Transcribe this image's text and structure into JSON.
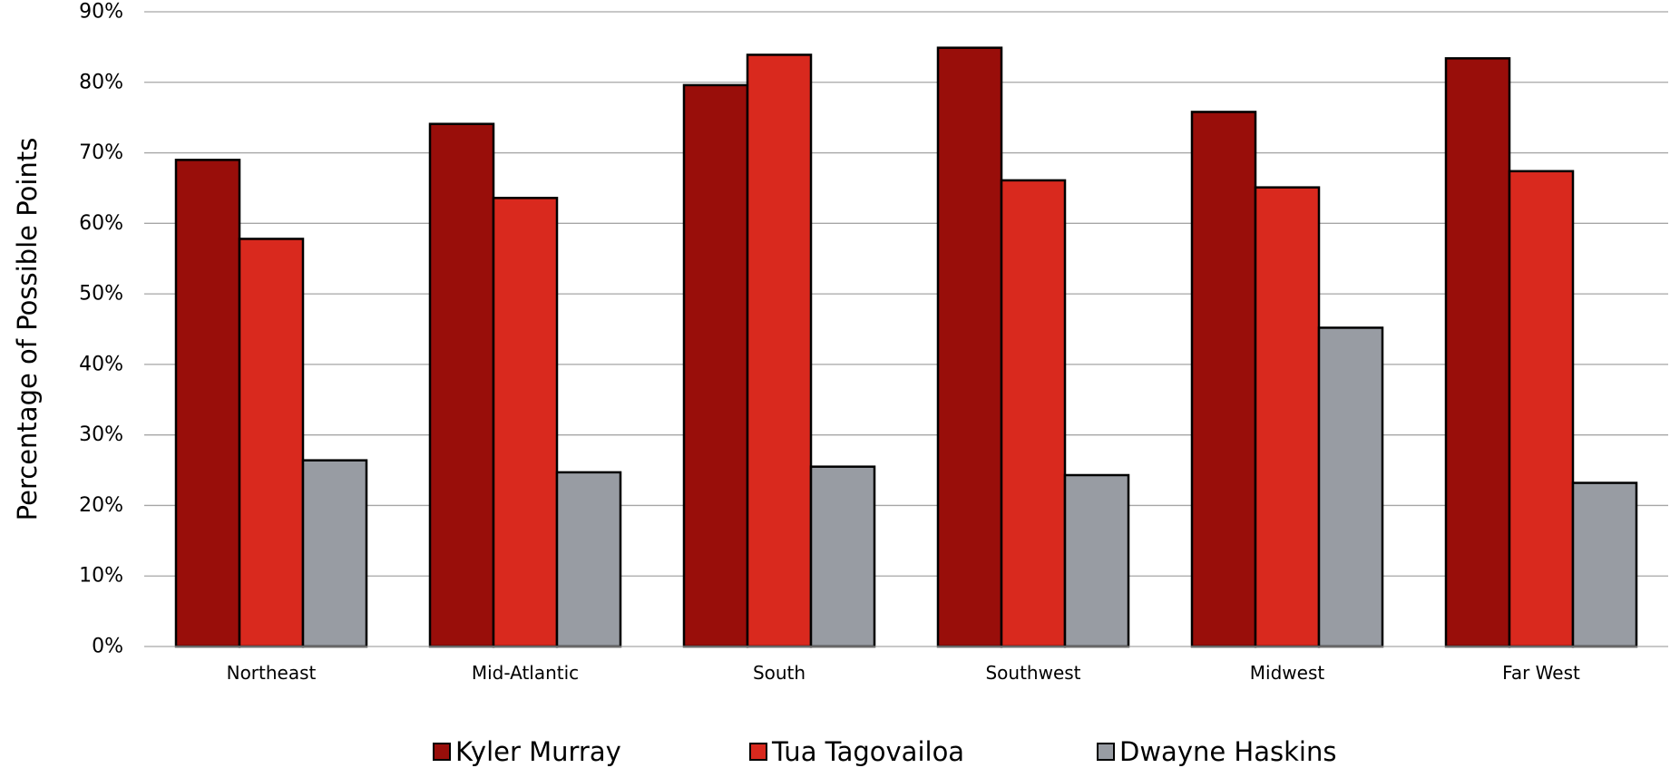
{
  "chart_data": {
    "type": "bar",
    "ylabel": "Percentage of Possible Points",
    "ylim": [
      0,
      90
    ],
    "yticks": [
      "0%",
      "10%",
      "20%",
      "30%",
      "40%",
      "50%",
      "60%",
      "70%",
      "80%",
      "90%"
    ],
    "grid": true,
    "legend_position": "bottom",
    "categories": [
      "Northeast",
      "Mid-Atlantic",
      "South",
      "Southwest",
      "Midwest",
      "Far West"
    ],
    "series": [
      {
        "name": "Kyler Murray",
        "color": "#990e0a",
        "values": [
          69.0,
          74.1,
          79.6,
          84.9,
          75.8,
          83.4
        ]
      },
      {
        "name": "Tua Tagovailoa",
        "color": "#d9291e",
        "values": [
          57.8,
          63.6,
          83.9,
          66.1,
          65.1,
          67.4
        ]
      },
      {
        "name": "Dwayne Haskins",
        "color": "#989ca3",
        "values": [
          26.4,
          24.7,
          25.5,
          24.3,
          45.2,
          23.2
        ]
      }
    ]
  }
}
